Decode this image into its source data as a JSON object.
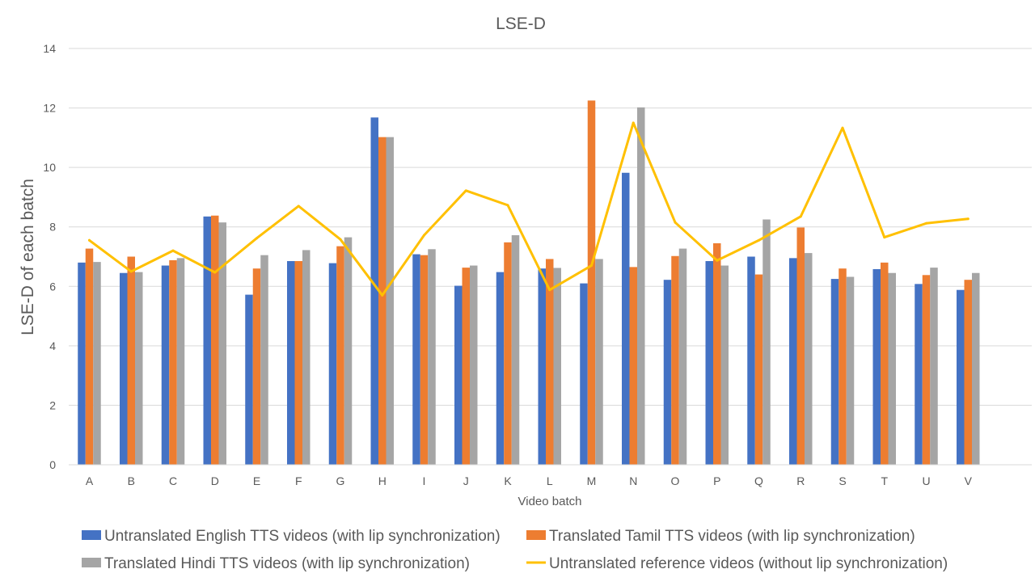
{
  "chart_data": {
    "type": "bar",
    "title": "LSE-D",
    "xlabel": "Video batch",
    "ylabel": "LSE-D of each batch",
    "ylim": [
      0,
      14
    ],
    "yticks": [
      "0",
      "2",
      "4",
      "6",
      "8",
      "10",
      "12",
      "14"
    ],
    "grid": true,
    "legend_position": "bottom",
    "categories": [
      "A",
      "B",
      "C",
      "D",
      "E",
      "F",
      "G",
      "H",
      "I",
      "J",
      "K",
      "L",
      "M",
      "N",
      "O",
      "P",
      "Q",
      "R",
      "S",
      "T",
      "U",
      "V"
    ],
    "series": [
      {
        "name": "Untranslated English TTS videos (with lip synchronization)",
        "kind": "bar",
        "color": "#4472C4",
        "values": [
          6.8,
          6.45,
          6.7,
          8.35,
          5.72,
          6.85,
          6.78,
          11.68,
          7.08,
          6.02,
          6.48,
          6.6,
          6.1,
          9.82,
          6.22,
          6.85,
          7.0,
          6.95,
          6.25,
          6.58,
          6.08,
          5.88
        ]
      },
      {
        "name": "Translated Tamil TTS videos (with lip synchronization)",
        "kind": "bar",
        "color": "#ED7D31",
        "values": [
          7.27,
          7.0,
          6.88,
          8.38,
          6.6,
          6.85,
          7.35,
          11.02,
          7.05,
          6.63,
          7.48,
          6.92,
          12.25,
          6.65,
          7.02,
          7.45,
          6.4,
          7.98,
          6.6,
          6.8,
          6.38,
          6.22
        ]
      },
      {
        "name": "Translated Hindi TTS videos (with lip synchronization)",
        "kind": "bar",
        "color": "#A5A5A5",
        "values": [
          6.82,
          6.48,
          6.95,
          8.15,
          7.05,
          7.22,
          7.65,
          11.02,
          7.25,
          6.7,
          7.72,
          6.62,
          6.92,
          12.02,
          7.27,
          6.7,
          8.25,
          7.12,
          6.32,
          6.45,
          6.63,
          6.45
        ]
      },
      {
        "name": "Untranslated reference videos (without lip synchronization)",
        "kind": "line",
        "color": "#FFC000",
        "values": [
          7.55,
          6.5,
          7.2,
          6.47,
          7.62,
          8.7,
          7.58,
          5.7,
          7.72,
          9.22,
          8.73,
          5.88,
          6.7,
          11.5,
          8.15,
          6.87,
          7.55,
          8.35,
          11.33,
          7.65,
          8.12,
          8.27
        ]
      }
    ]
  }
}
